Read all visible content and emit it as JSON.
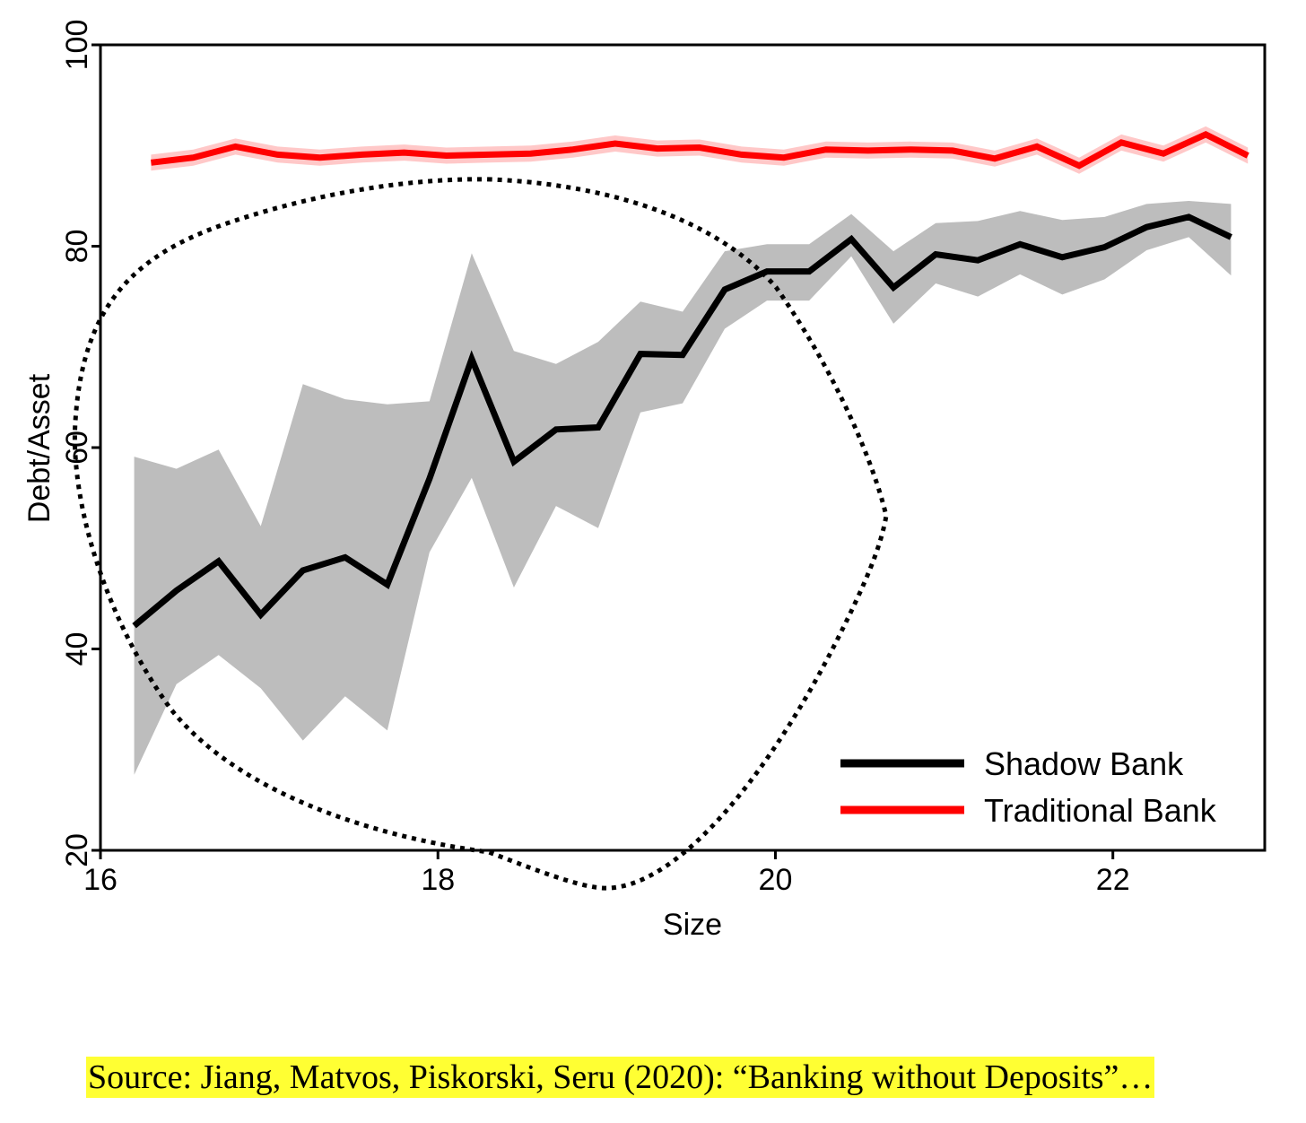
{
  "chart_data": {
    "type": "line",
    "xlabel": "Size",
    "ylabel": "Debt/Asset",
    "xlim": [
      16,
      22.9
    ],
    "ylim": [
      20,
      100
    ],
    "xticks": [
      16,
      18,
      20,
      22
    ],
    "yticks": [
      20,
      40,
      60,
      80,
      100
    ],
    "grid": false,
    "legend_position": "bottom-right",
    "series": [
      {
        "name": "Shadow Bank",
        "color": "#000000",
        "band_color": "#bdbdbd",
        "x": [
          16.2,
          16.45,
          16.7,
          16.95,
          17.2,
          17.45,
          17.7,
          17.95,
          18.2,
          18.45,
          18.7,
          18.95,
          19.2,
          19.45,
          19.7,
          19.95,
          20.2,
          20.45,
          20.7,
          20.95,
          21.2,
          21.45,
          21.7,
          21.95,
          22.2,
          22.45,
          22.7
        ],
        "values": [
          42.3,
          45.8,
          48.7,
          43.4,
          47.8,
          49.1,
          46.4,
          56.9,
          68.8,
          58.6,
          61.8,
          62.0,
          69.3,
          69.2,
          75.7,
          77.5,
          77.5,
          80.7,
          75.9,
          79.2,
          78.6,
          80.2,
          78.9,
          79.9,
          81.9,
          82.9,
          80.9
        ],
        "lower": [
          27.5,
          36.5,
          39.4,
          36.1,
          30.9,
          35.3,
          31.9,
          49.6,
          57.0,
          46.1,
          54.2,
          52.0,
          63.5,
          64.4,
          71.8,
          74.6,
          74.6,
          79.0,
          72.3,
          76.3,
          75.0,
          77.2,
          75.2,
          76.7,
          79.6,
          80.9,
          77.1
        ],
        "upper": [
          59.1,
          57.9,
          59.8,
          52.2,
          66.3,
          64.8,
          64.3,
          64.6,
          79.3,
          69.6,
          68.3,
          70.5,
          74.5,
          73.5,
          79.5,
          80.2,
          80.2,
          83.2,
          79.5,
          82.3,
          82.5,
          83.5,
          82.6,
          82.9,
          84.2,
          84.5,
          84.2
        ]
      },
      {
        "name": "Traditional Bank",
        "color": "#ff0000",
        "band_color": "#ffc8c8",
        "x": [
          16.3,
          16.55,
          16.8,
          17.05,
          17.3,
          17.55,
          17.8,
          18.05,
          18.3,
          18.55,
          18.8,
          19.05,
          19.3,
          19.55,
          19.8,
          20.05,
          20.3,
          20.55,
          20.8,
          21.05,
          21.3,
          21.55,
          21.8,
          22.05,
          22.3,
          22.55,
          22.8
        ],
        "values": [
          88.3,
          88.8,
          89.9,
          89.1,
          88.8,
          89.1,
          89.3,
          89.0,
          89.1,
          89.2,
          89.6,
          90.2,
          89.7,
          89.8,
          89.1,
          88.8,
          89.6,
          89.5,
          89.6,
          89.5,
          88.7,
          89.9,
          88.0,
          90.3,
          89.2,
          91.1,
          89.0
        ]
      }
    ]
  },
  "caption": "Source: Jiang, Matvos, Piskorski, Seru (2020): “Banking without Deposits”…"
}
